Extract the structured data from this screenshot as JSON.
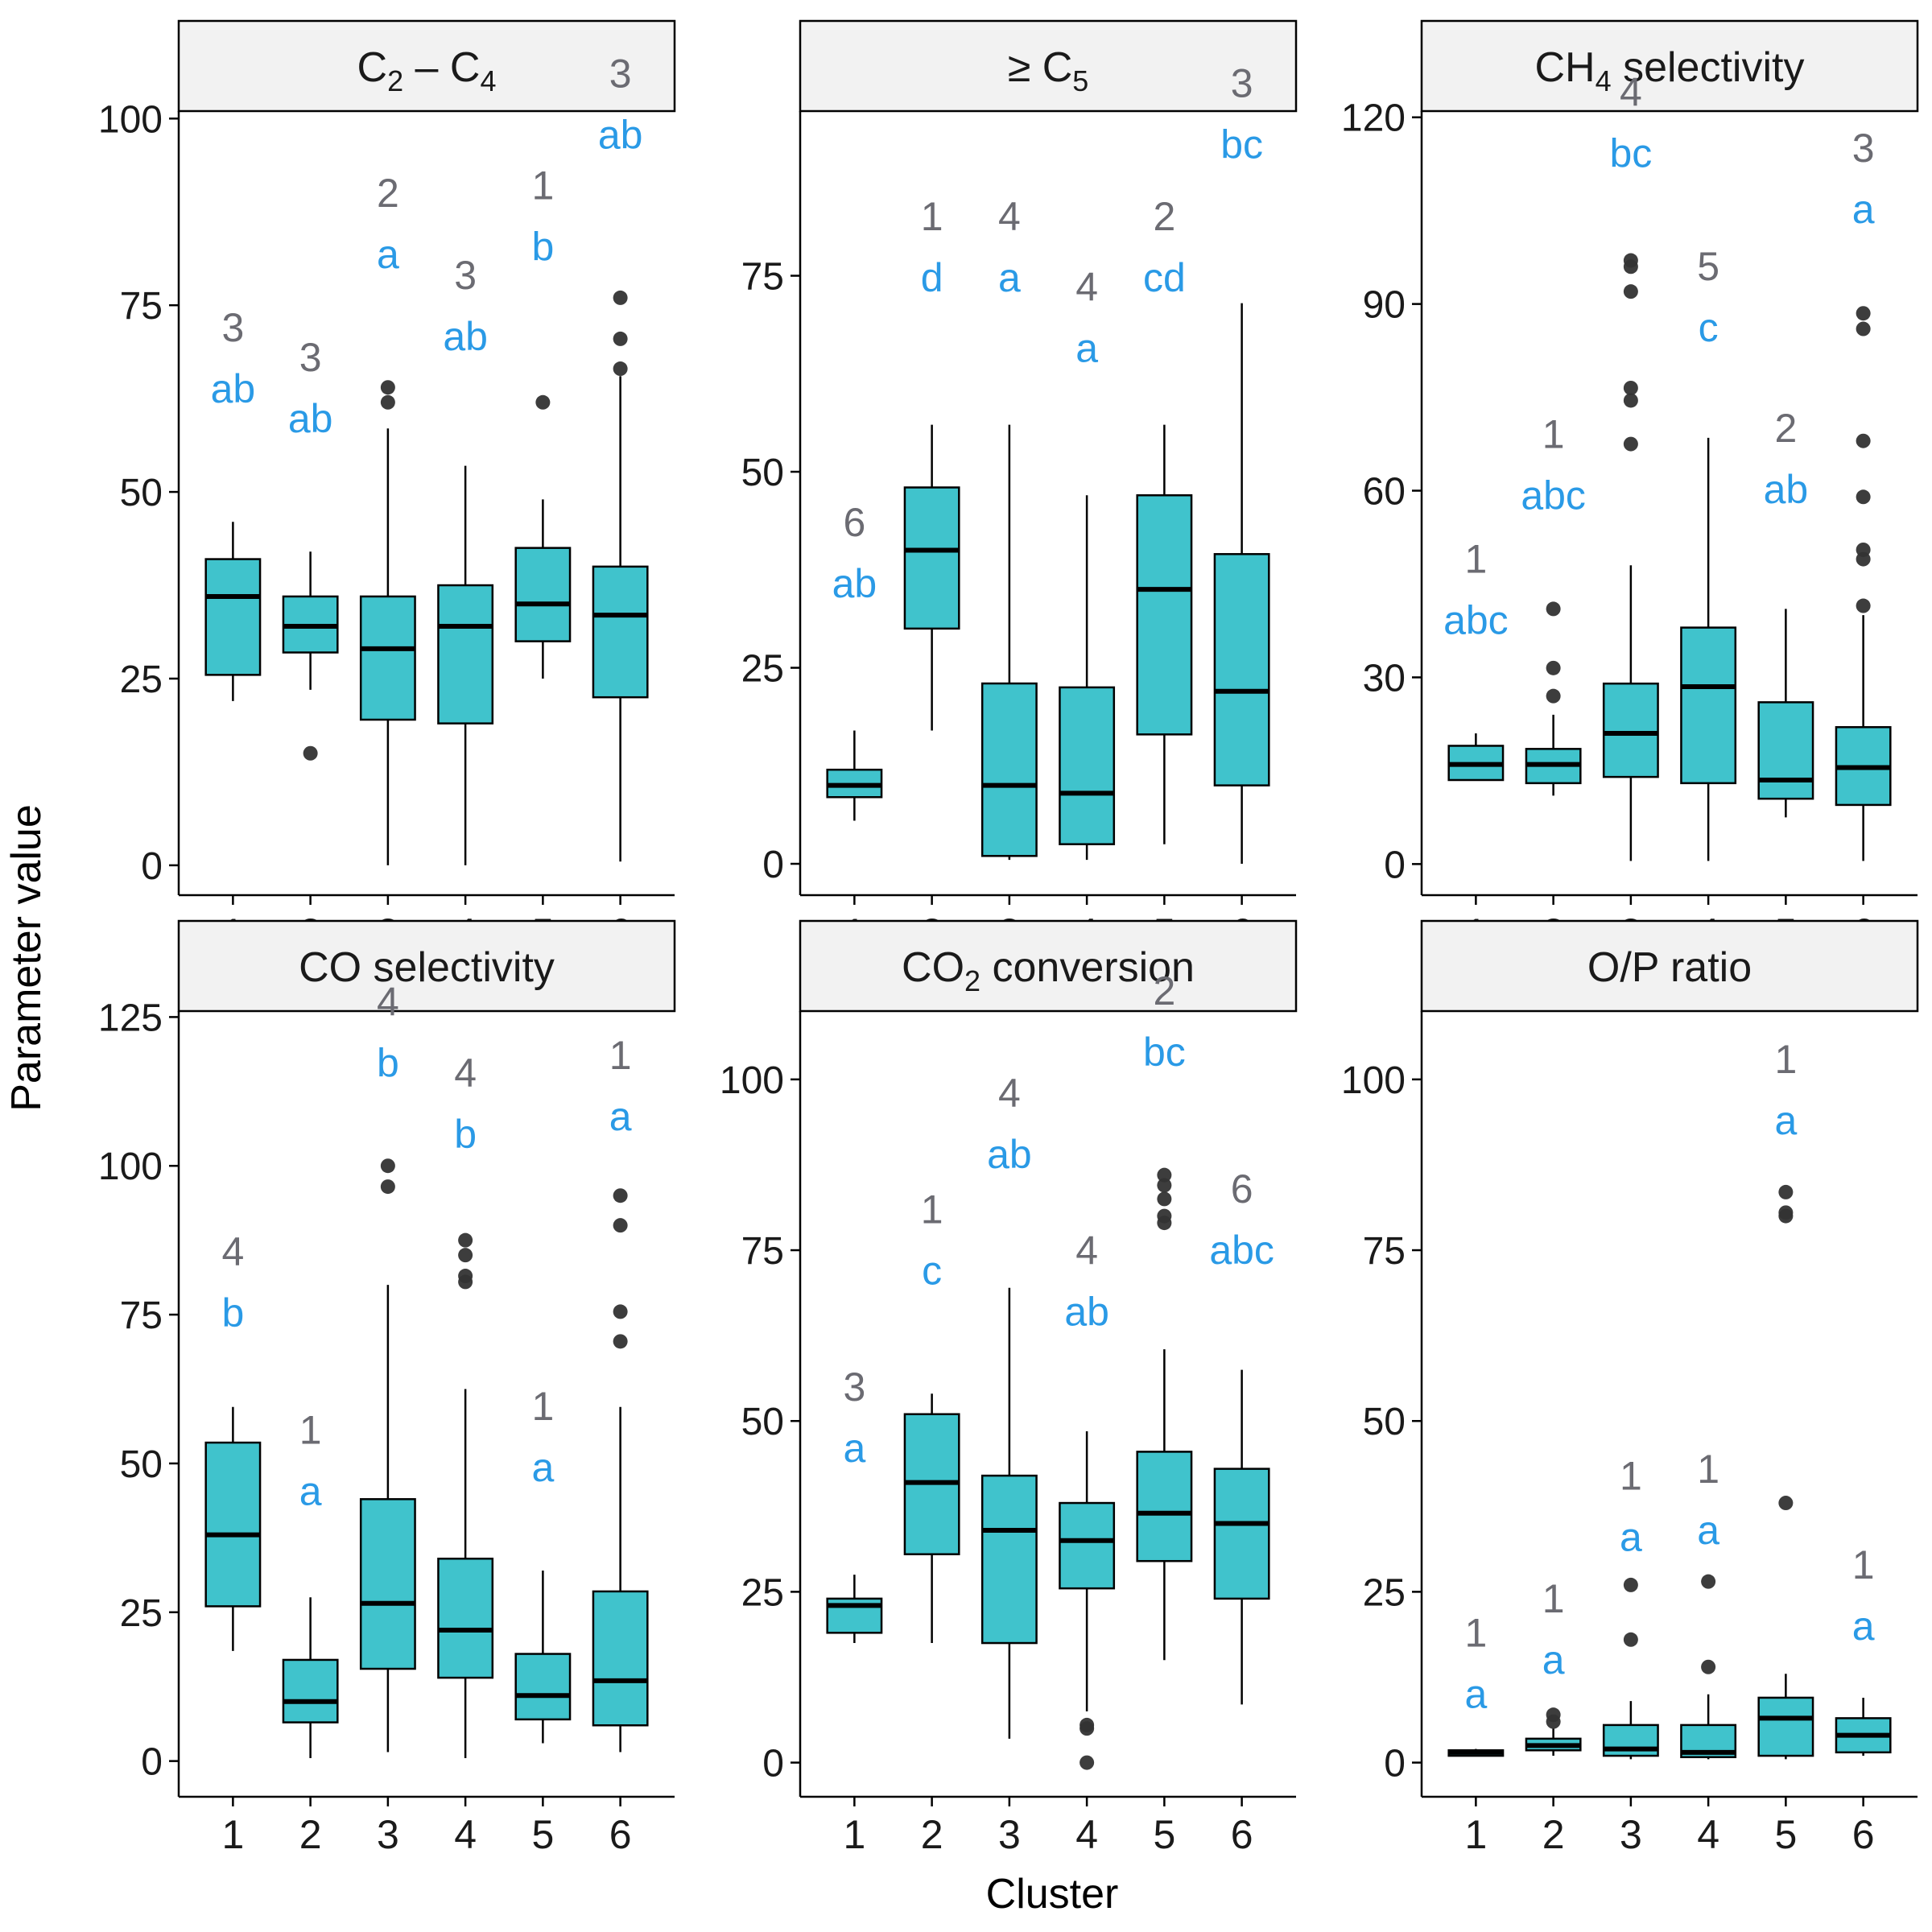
{
  "figure": {
    "ylabel": "Parameter value",
    "xlabel": "Cluster"
  },
  "colors": {
    "box_fill": "#40c3cc",
    "letters": "#2a9ae6",
    "counts": "#6b6b72",
    "strip_fill": "#f2f2f2",
    "outlier": "#333333"
  },
  "chart_data": [
    {
      "type": "box",
      "title_main": "C",
      "title_parts": [
        {
          "t": "C"
        },
        {
          "t": "2",
          "sub": true
        },
        {
          "t": " – C"
        },
        {
          "t": "4",
          "sub": true
        }
      ],
      "categories": [
        "1",
        "2",
        "3",
        "4",
        "5",
        "6"
      ],
      "yticks": [
        0,
        25,
        50,
        75,
        100
      ],
      "ylim": [
        -4,
        101
      ],
      "boxes": [
        {
          "cluster": "1",
          "whisker_low": 22,
          "q1": 25.5,
          "median": 36,
          "q3": 41,
          "whisker_high": 46,
          "outliers": [],
          "letter": "ab",
          "count": "3",
          "label_y": 62
        },
        {
          "cluster": "2",
          "whisker_low": 23.5,
          "q1": 28.5,
          "median": 32,
          "q3": 36,
          "whisker_high": 42,
          "outliers": [
            15
          ],
          "letter": "ab",
          "count": "3",
          "label_y": 58
        },
        {
          "cluster": "3",
          "whisker_low": 0,
          "q1": 19.5,
          "median": 29,
          "q3": 36,
          "whisker_high": 58.5,
          "outliers": [
            62,
            64
          ],
          "letter": "a",
          "count": "2",
          "label_y": 80
        },
        {
          "cluster": "4",
          "whisker_low": 0,
          "q1": 19,
          "median": 32,
          "q3": 37.5,
          "whisker_high": 53.5,
          "outliers": [],
          "letter": "ab",
          "count": "3",
          "label_y": 69
        },
        {
          "cluster": "5",
          "whisker_low": 25,
          "q1": 30,
          "median": 35,
          "q3": 42.5,
          "whisker_high": 49,
          "outliers": [
            62
          ],
          "letter": "b",
          "count": "1",
          "label_y": 81
        },
        {
          "cluster": "6",
          "whisker_low": 0.5,
          "q1": 22.5,
          "median": 33.5,
          "q3": 40,
          "whisker_high": 65.5,
          "outliers": [
            66.5,
            70.5,
            76
          ],
          "letter": "ab",
          "count": "3",
          "label_y": 96
        }
      ]
    },
    {
      "type": "box",
      "title_parts": [
        {
          "t": "≥ C"
        },
        {
          "t": "5",
          "sub": true
        }
      ],
      "categories": [
        "1",
        "2",
        "3",
        "4",
        "5",
        "6"
      ],
      "yticks": [
        0,
        25,
        50,
        75
      ],
      "ylim": [
        -4,
        96
      ],
      "boxes": [
        {
          "cluster": "1",
          "whisker_low": 5.5,
          "q1": 8.5,
          "median": 10,
          "q3": 12,
          "whisker_high": 17,
          "outliers": [],
          "letter": "ab",
          "count": "6",
          "label_y": 34
        },
        {
          "cluster": "2",
          "whisker_low": 17,
          "q1": 30,
          "median": 40,
          "q3": 48,
          "whisker_high": 56,
          "outliers": [],
          "letter": "d",
          "count": "1",
          "label_y": 73
        },
        {
          "cluster": "3",
          "whisker_low": 0.5,
          "q1": 1,
          "median": 10,
          "q3": 23,
          "whisker_high": 56,
          "outliers": [],
          "letter": "a",
          "count": "4",
          "label_y": 73
        },
        {
          "cluster": "4",
          "whisker_low": 0.5,
          "q1": 2.5,
          "median": 9,
          "q3": 22.5,
          "whisker_high": 47,
          "outliers": [],
          "letter": "a",
          "count": "4",
          "label_y": 64
        },
        {
          "cluster": "5",
          "whisker_low": 2.5,
          "q1": 16.5,
          "median": 35,
          "q3": 47,
          "whisker_high": 56,
          "outliers": [],
          "letter": "cd",
          "count": "2",
          "label_y": 73
        },
        {
          "cluster": "6",
          "whisker_low": 0,
          "q1": 10,
          "median": 22,
          "q3": 39.5,
          "whisker_high": 71.5,
          "outliers": [],
          "letter": "bc",
          "count": "3",
          "label_y": 90
        }
      ]
    },
    {
      "type": "box",
      "title_parts": [
        {
          "t": "CH"
        },
        {
          "t": "4",
          "sub": true
        },
        {
          "t": " selectivity"
        }
      ],
      "categories": [
        "1",
        "2",
        "3",
        "4",
        "5",
        "6"
      ],
      "yticks": [
        0,
        30,
        60,
        90,
        120
      ],
      "ylim": [
        -5,
        121
      ],
      "boxes": [
        {
          "cluster": "1",
          "whisker_low": 13.5,
          "q1": 13.5,
          "median": 16,
          "q3": 19,
          "whisker_high": 21,
          "outliers": [],
          "letter": "abc",
          "count": "1",
          "label_y": 37
        },
        {
          "cluster": "2",
          "whisker_low": 11,
          "q1": 13,
          "median": 16,
          "q3": 18.5,
          "whisker_high": 24,
          "outliers": [
            27,
            31.5,
            41
          ],
          "letter": "abc",
          "count": "1",
          "label_y": 57
        },
        {
          "cluster": "3",
          "whisker_low": 0.5,
          "q1": 14,
          "median": 21,
          "q3": 29,
          "whisker_high": 48,
          "outliers": [
            67.5,
            74.5,
            76.5,
            92,
            96,
            97
          ],
          "letter": "bc",
          "count": "4",
          "label_y": 112
        },
        {
          "cluster": "4",
          "whisker_low": 0.5,
          "q1": 13,
          "median": 28.5,
          "q3": 38,
          "whisker_high": 68.5,
          "outliers": [],
          "letter": "c",
          "count": "5",
          "label_y": 84
        },
        {
          "cluster": "5",
          "whisker_low": 7.5,
          "q1": 10.5,
          "median": 13.5,
          "q3": 26,
          "whisker_high": 41,
          "outliers": [],
          "letter": "ab",
          "count": "2",
          "label_y": 58
        },
        {
          "cluster": "6",
          "whisker_low": 0.5,
          "q1": 9.5,
          "median": 15.5,
          "q3": 22,
          "whisker_high": 40,
          "outliers": [
            41.5,
            49,
            50.5,
            59,
            68,
            86,
            88.5
          ],
          "letter": "a",
          "count": "3",
          "label_y": 103
        }
      ]
    },
    {
      "type": "box",
      "title_parts": [
        {
          "t": "CO selectivity"
        }
      ],
      "categories": [
        "1",
        "2",
        "3",
        "4",
        "5",
        "6"
      ],
      "yticks": [
        0,
        25,
        50,
        75,
        100,
        125
      ],
      "ylim": [
        -6,
        126
      ],
      "boxes": [
        {
          "cluster": "1",
          "whisker_low": 18.5,
          "q1": 26,
          "median": 38,
          "q3": 53.5,
          "whisker_high": 59.5,
          "outliers": [],
          "letter": "b",
          "count": "4",
          "label_y": 73
        },
        {
          "cluster": "2",
          "whisker_low": 0.5,
          "q1": 6.5,
          "median": 10,
          "q3": 17,
          "whisker_high": 27.5,
          "outliers": [],
          "letter": "a",
          "count": "1",
          "label_y": 43
        },
        {
          "cluster": "3",
          "whisker_low": 1.5,
          "q1": 15.5,
          "median": 26.5,
          "q3": 44,
          "whisker_high": 80,
          "outliers": [
            96.5,
            100
          ],
          "letter": "b",
          "count": "4",
          "label_y": 115
        },
        {
          "cluster": "4",
          "whisker_low": 0.5,
          "q1": 14,
          "median": 22,
          "q3": 34,
          "whisker_high": 62.5,
          "outliers": [
            80.5,
            81.5,
            85,
            87.5
          ],
          "letter": "b",
          "count": "4",
          "label_y": 103
        },
        {
          "cluster": "5",
          "whisker_low": 3,
          "q1": 7,
          "median": 11,
          "q3": 18,
          "whisker_high": 32,
          "outliers": [],
          "letter": "a",
          "count": "1",
          "label_y": 47
        },
        {
          "cluster": "6",
          "whisker_low": 1.5,
          "q1": 6,
          "median": 13.5,
          "q3": 28.5,
          "whisker_high": 59.5,
          "outliers": [
            70.5,
            75.5,
            90,
            95
          ],
          "letter": "a",
          "count": "1",
          "label_y": 106
        }
      ]
    },
    {
      "type": "box",
      "title_parts": [
        {
          "t": "CO"
        },
        {
          "t": "2",
          "sub": true
        },
        {
          "t": " conversion"
        }
      ],
      "categories": [
        "1",
        "2",
        "3",
        "4",
        "5",
        "6"
      ],
      "yticks": [
        0,
        25,
        50,
        75,
        100
      ],
      "ylim": [
        -5,
        110
      ],
      "boxes": [
        {
          "cluster": "1",
          "whisker_low": 17.5,
          "q1": 19,
          "median": 23,
          "q3": 24,
          "whisker_high": 27.5,
          "outliers": [],
          "letter": "a",
          "count": "3",
          "label_y": 44
        },
        {
          "cluster": "2",
          "whisker_low": 17.5,
          "q1": 30.5,
          "median": 41,
          "q3": 51,
          "whisker_high": 54,
          "outliers": [],
          "letter": "c",
          "count": "1",
          "label_y": 70
        },
        {
          "cluster": "3",
          "whisker_low": 3.5,
          "q1": 17.5,
          "median": 34,
          "q3": 42,
          "whisker_high": 69.5,
          "outliers": [],
          "letter": "ab",
          "count": "4",
          "label_y": 87
        },
        {
          "cluster": "4",
          "whisker_low": 7.5,
          "q1": 25.5,
          "median": 32.5,
          "q3": 38,
          "whisker_high": 48.5,
          "outliers": [
            0,
            5,
            5.5
          ],
          "letter": "ab",
          "count": "4",
          "label_y": 64
        },
        {
          "cluster": "5",
          "whisker_low": 15,
          "q1": 29.5,
          "median": 36.5,
          "q3": 45.5,
          "whisker_high": 60.5,
          "outliers": [
            79,
            80,
            82.5,
            84.5,
            86
          ],
          "letter": "bc",
          "count": "2",
          "label_y": 102
        },
        {
          "cluster": "6",
          "whisker_low": 8.5,
          "q1": 24,
          "median": 35,
          "q3": 43,
          "whisker_high": 57.5,
          "outliers": [],
          "letter": "abc",
          "count": "6",
          "label_y": 73
        }
      ]
    },
    {
      "type": "box",
      "title_parts": [
        {
          "t": "O/P ratio"
        }
      ],
      "categories": [
        "1",
        "2",
        "3",
        "4",
        "5",
        "6"
      ],
      "yticks": [
        0,
        25,
        50,
        75,
        100
      ],
      "ylim": [
        -5,
        110
      ],
      "boxes": [
        {
          "cluster": "1",
          "whisker_low": 1,
          "q1": 1,
          "median": 1.5,
          "q3": 1.8,
          "whisker_high": 2,
          "outliers": [],
          "letter": "a",
          "count": "1",
          "label_y": 8
        },
        {
          "cluster": "2",
          "whisker_low": 1,
          "q1": 1.8,
          "median": 2.5,
          "q3": 3.5,
          "whisker_high": 5,
          "outliers": [
            6,
            7
          ],
          "letter": "a",
          "count": "1",
          "label_y": 13
        },
        {
          "cluster": "3",
          "whisker_low": 0.5,
          "q1": 1,
          "median": 2,
          "q3": 5.5,
          "whisker_high": 9,
          "outliers": [
            18,
            26
          ],
          "letter": "a",
          "count": "1",
          "label_y": 31
        },
        {
          "cluster": "4",
          "whisker_low": 0.5,
          "q1": 0.8,
          "median": 1.5,
          "q3": 5.5,
          "whisker_high": 10,
          "outliers": [
            14,
            26.5
          ],
          "letter": "a",
          "count": "1",
          "label_y": 32
        },
        {
          "cluster": "5",
          "whisker_low": 0.5,
          "q1": 1,
          "median": 6.5,
          "q3": 9.5,
          "whisker_high": 13,
          "outliers": [
            38,
            80,
            80.5,
            83.5
          ],
          "letter": "a",
          "count": "1",
          "label_y": 92
        },
        {
          "cluster": "6",
          "whisker_low": 1,
          "q1": 1.5,
          "median": 4,
          "q3": 6.5,
          "whisker_high": 9.5,
          "outliers": [],
          "letter": "a",
          "count": "1",
          "label_y": 18
        }
      ]
    }
  ]
}
